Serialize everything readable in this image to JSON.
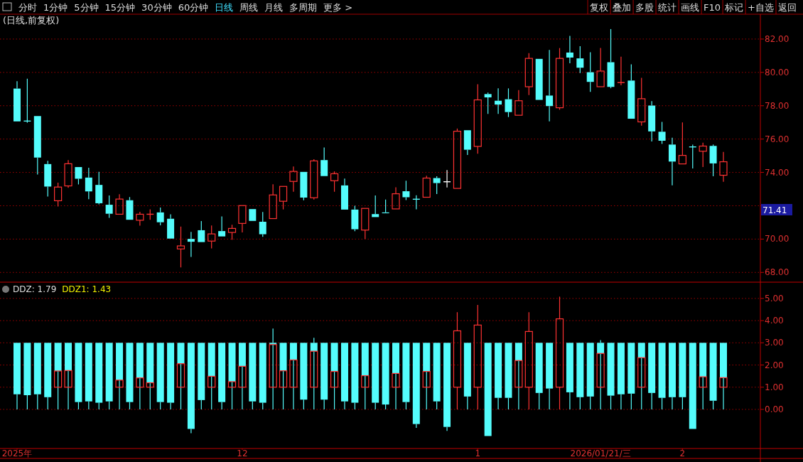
{
  "chart_data": [
    {
      "type": "candlestick",
      "title": "(日线,前复权)",
      "annotations": [
        "分时",
        "1分钟",
        "5分钟",
        "15分钟",
        "30分钟",
        "60分钟",
        "日线",
        "周线",
        "月线",
        "多周期",
        "更多 >",
        "复权",
        "叠加",
        "多股",
        "统计",
        "画线",
        "F10",
        "标记",
        "+自选",
        "返回",
        "71.41"
      ],
      "categories": [
        null,
        null,
        null,
        null,
        null,
        null,
        null,
        null,
        null,
        null,
        null,
        null,
        null,
        null,
        null,
        null,
        null,
        null,
        null,
        null,
        null,
        null,
        null,
        null,
        null,
        null,
        null,
        null,
        null,
        null,
        null,
        null,
        null,
        null,
        null,
        null,
        null,
        null,
        null,
        null,
        null,
        null,
        null,
        null,
        null,
        null,
        null,
        null,
        null,
        null,
        null,
        null,
        null,
        null,
        null,
        null,
        null,
        null,
        null,
        null,
        null,
        null,
        null,
        null,
        null,
        null,
        null,
        null,
        null,
        null
      ],
      "ohlc": [
        [
          79.03,
          79.47,
          77.06,
          77.06
        ],
        [
          77.08,
          79.62,
          76.98,
          77.08
        ],
        [
          77.38,
          77.38,
          73.87,
          74.89
        ],
        [
          74.5,
          74.7,
          72.55,
          73.15
        ],
        [
          72.3,
          73.38,
          71.96,
          73.12
        ],
        [
          73.19,
          74.74,
          73.07,
          74.52
        ],
        [
          74.32,
          74.32,
          73.28,
          73.62
        ],
        [
          73.69,
          74.28,
          72.39,
          72.86
        ],
        [
          73.25,
          74.03,
          72.08,
          72.15
        ],
        [
          72.06,
          72.62,
          71.27,
          71.52
        ],
        [
          71.49,
          72.69,
          71.49,
          72.4
        ],
        [
          72.33,
          72.52,
          71.16,
          71.16
        ],
        [
          71.13,
          71.64,
          70.8,
          71.49
        ],
        [
          71.49,
          71.78,
          71.16,
          71.49
        ],
        [
          71.6,
          71.89,
          70.83,
          71.01
        ],
        [
          71.22,
          71.49,
          70.03,
          70.03
        ],
        [
          69.41,
          70.75,
          68.3,
          69.59
        ],
        [
          70.01,
          70.43,
          68.93,
          69.84
        ],
        [
          70.53,
          71.08,
          69.82,
          69.82
        ],
        [
          69.88,
          70.82,
          69.44,
          70.31
        ],
        [
          70.48,
          71.36,
          70.16,
          70.16
        ],
        [
          70.4,
          70.86,
          69.96,
          70.64
        ],
        [
          70.94,
          72.01,
          70.4,
          72.01
        ],
        [
          71.8,
          71.8,
          71.09,
          71.09
        ],
        [
          71.04,
          71.63,
          70.13,
          70.29
        ],
        [
          71.23,
          73.29,
          71.23,
          72.65
        ],
        [
          72.27,
          73.16,
          71.78,
          73.16
        ],
        [
          73.46,
          74.35,
          72.84,
          74.06
        ],
        [
          74.03,
          74.03,
          72.33,
          72.49
        ],
        [
          72.48,
          74.79,
          72.37,
          74.69
        ],
        [
          74.74,
          75.5,
          73.78,
          73.78
        ],
        [
          73.5,
          74.06,
          72.84,
          73.92
        ],
        [
          73.22,
          73.63,
          71.77,
          71.77
        ],
        [
          71.77,
          72.0,
          70.47,
          70.59
        ],
        [
          70.54,
          71.84,
          70.0,
          71.84
        ],
        [
          71.5,
          72.62,
          71.32,
          71.32
        ],
        [
          71.6,
          72.37,
          71.55,
          71.55
        ],
        [
          71.81,
          73.11,
          71.81,
          72.72
        ],
        [
          72.87,
          73.5,
          72.34,
          72.51
        ],
        [
          72.39,
          72.63,
          71.78,
          72.39
        ],
        [
          72.51,
          73.8,
          72.51,
          73.66
        ],
        [
          73.66,
          73.77,
          72.7,
          73.36
        ],
        [
          73.44,
          74.14,
          73.1,
          73.44
        ],
        [
          73.04,
          76.63,
          73.04,
          76.47
        ],
        [
          76.53,
          76.53,
          75.05,
          75.36
        ],
        [
          75.56,
          79.29,
          75.12,
          78.35
        ],
        [
          78.7,
          78.79,
          77.51,
          78.5
        ],
        [
          78.3,
          79.04,
          77.51,
          78.07
        ],
        [
          78.39,
          79.04,
          77.32,
          77.62
        ],
        [
          77.43,
          78.94,
          77.43,
          78.3
        ],
        [
          79.14,
          81.16,
          78.64,
          80.84
        ],
        [
          80.81,
          80.81,
          78.35,
          78.35
        ],
        [
          78.61,
          81.35,
          77.06,
          77.98
        ],
        [
          77.88,
          81.46,
          77.76,
          80.84
        ],
        [
          81.19,
          82.19,
          80.55,
          80.89
        ],
        [
          80.84,
          81.57,
          79.96,
          80.28
        ],
        [
          80.01,
          81.21,
          78.83,
          79.43
        ],
        [
          79.14,
          81.46,
          79.14,
          80.08
        ],
        [
          80.61,
          82.6,
          79.05,
          79.13
        ],
        [
          79.39,
          80.94,
          79.23,
          79.39
        ],
        [
          79.51,
          80.48,
          77.22,
          77.22
        ],
        [
          77.03,
          79.67,
          76.81,
          78.42
        ],
        [
          78.01,
          78.28,
          75.86,
          76.46
        ],
        [
          76.44,
          77.03,
          75.71,
          75.9
        ],
        [
          75.67,
          76.08,
          73.22,
          74.65
        ],
        [
          74.51,
          77.0,
          74.51,
          75.02
        ],
        [
          75.53,
          75.67,
          74.24,
          75.53
        ],
        [
          75.27,
          75.78,
          74.32,
          75.58
        ],
        [
          75.59,
          75.67,
          73.77,
          74.54
        ],
        [
          73.83,
          75.23,
          73.44,
          74.64
        ]
      ],
      "colors": [
        "#54fcfc",
        "#54fcfc",
        "#54fcfc",
        "#54fcfc",
        "#ff3232",
        "#ff3232",
        "#54fcfc",
        "#54fcfc",
        "#54fcfc",
        "#54fcfc",
        "#ff3232",
        "#54fcfc",
        "#ff3232",
        "#ff3232",
        "#54fcfc",
        "#54fcfc",
        "#ff3232",
        "#54fcfc",
        "#54fcfc",
        "#ff3232",
        "#54fcfc",
        "#ff3232",
        "#ff3232",
        "#54fcfc",
        "#54fcfc",
        "#ff3232",
        "#ff3232",
        "#ff3232",
        "#54fcfc",
        "#ff3232",
        "#54fcfc",
        "#ff3232",
        "#54fcfc",
        "#54fcfc",
        "#ff3232",
        "#54fcfc",
        "#54fcfc",
        "#ff3232",
        "#54fcfc",
        "#54fcfc",
        "#ff3232",
        "#54fcfc",
        "#ffffff",
        "#ff3232",
        "#54fcfc",
        "#ff3232",
        "#54fcfc",
        "#54fcfc",
        "#54fcfc",
        "#ff3232",
        "#ff3232",
        "#54fcfc",
        "#54fcfc",
        "#ff3232",
        "#54fcfc",
        "#54fcfc",
        "#54fcfc",
        "#ff3232",
        "#54fcfc",
        "#ff3232",
        "#54fcfc",
        "#ff3232",
        "#54fcfc",
        "#54fcfc",
        "#54fcfc",
        "#ff3232",
        "#54fcfc",
        "#ff3232",
        "#54fcfc",
        "#ff3232"
      ],
      "ylim": [
        67.5,
        83.49
      ],
      "yticks": [
        {
          "value": 68,
          "label": "68.00"
        },
        {
          "value": 70,
          "label": "70.00"
        },
        {
          "value": 72,
          "label": null
        },
        {
          "value": 74,
          "label": "74.00"
        },
        {
          "value": 76,
          "label": "76.00"
        },
        {
          "value": 78,
          "label": "78.00"
        },
        {
          "value": 80,
          "label": "80.00"
        },
        {
          "value": 82,
          "label": "82.00"
        }
      ],
      "grid": "y",
      "tick_labels": "y"
    },
    {
      "type": "candlestick",
      "annotations": [
        "DDZ: 1.79",
        "DDZ1: 1.43"
      ],
      "categories": [
        "2025年",
        null,
        null,
        null,
        null,
        null,
        null,
        null,
        null,
        null,
        null,
        null,
        null,
        null,
        null,
        null,
        null,
        null,
        null,
        null,
        null,
        null,
        "12",
        null,
        null,
        null,
        null,
        null,
        null,
        null,
        null,
        null,
        null,
        null,
        null,
        null,
        null,
        null,
        null,
        null,
        null,
        null,
        null,
        null,
        null,
        "1",
        null,
        null,
        null,
        null,
        null,
        null,
        null,
        null,
        null,
        null,
        null,
        "2026/01/21/三",
        null,
        null,
        null,
        null,
        null,
        null,
        null,
        "2",
        null,
        null,
        null,
        null
      ],
      "color": "#54fcfc",
      "ohlc": [
        [
          3,
          3,
          0,
          0.68
        ],
        [
          3,
          3,
          0,
          0.64
        ],
        [
          3,
          3,
          0,
          0.68
        ],
        [
          3,
          3,
          0,
          0.55
        ],
        [
          3,
          3,
          0,
          1.73
        ],
        [
          3,
          3,
          0,
          1.75
        ],
        [
          3,
          3,
          0,
          0.33
        ],
        [
          3,
          3,
          0,
          0.36
        ],
        [
          3,
          3,
          0,
          0.3
        ],
        [
          3,
          3,
          0,
          0.36
        ],
        [
          3,
          3,
          0,
          1.32
        ],
        [
          3,
          3,
          0,
          0.33
        ],
        [
          3,
          3,
          0,
          1.42
        ],
        [
          3,
          3,
          0,
          1.2
        ],
        [
          3,
          3,
          0,
          0.33
        ],
        [
          3,
          3,
          0,
          0.3
        ],
        [
          3,
          3,
          0,
          2.06
        ],
        [
          3,
          3,
          -1.07,
          -0.88
        ],
        [
          3,
          3,
          0,
          0.42
        ],
        [
          3,
          3,
          0,
          1.49
        ],
        [
          3,
          3,
          0,
          0.33
        ],
        [
          3,
          3,
          0,
          1.25
        ],
        [
          3,
          3,
          0,
          1.94
        ],
        [
          3,
          3,
          0,
          0.36
        ],
        [
          3,
          3,
          0,
          0.3
        ],
        [
          3,
          3.64,
          0,
          2.92
        ],
        [
          3,
          3,
          0,
          1.74
        ],
        [
          3,
          3,
          0,
          2.23
        ],
        [
          3,
          3,
          0,
          0.44
        ],
        [
          3,
          3.23,
          0,
          2.62
        ],
        [
          3,
          3,
          0,
          0.44
        ],
        [
          3,
          3,
          0,
          1.71
        ],
        [
          3,
          3,
          0,
          0.36
        ],
        [
          3,
          3,
          0,
          0.3
        ],
        [
          3,
          3,
          0,
          1.52
        ],
        [
          3,
          3,
          0,
          0.3
        ],
        [
          3,
          3,
          0,
          0.22
        ],
        [
          3,
          3,
          0,
          1.62
        ],
        [
          3,
          3,
          0,
          0.33
        ],
        [
          3,
          3,
          -0.83,
          -0.66
        ],
        [
          3,
          3,
          0,
          1.71
        ],
        [
          3,
          3,
          0,
          0.36
        ],
        [
          3,
          3,
          -0.97,
          -0.79
        ],
        null,
        [
          3,
          3,
          0,
          0.58
        ],
        null,
        [
          3,
          3,
          -1.2,
          -1.2
        ],
        [
          3,
          3,
          0,
          0.52
        ],
        [
          3,
          3,
          0,
          0.52
        ],
        [
          3,
          3,
          0,
          2.2
        ],
        null,
        [
          3,
          3,
          0,
          0.74
        ],
        [
          3,
          3,
          0,
          0.94
        ],
        null,
        [
          3,
          3,
          0,
          0.77
        ],
        [
          3,
          3,
          0,
          0.55
        ],
        [
          3,
          3,
          0,
          0.58
        ],
        [
          3,
          3.12,
          0,
          2.52
        ],
        [
          3,
          3,
          0,
          0.62
        ],
        [
          3,
          3,
          0,
          0.68
        ],
        [
          3,
          3,
          0,
          0.71
        ],
        [
          3,
          3,
          0,
          2.33
        ],
        [
          3,
          3,
          0,
          0.74
        ],
        [
          3,
          3,
          0,
          0.52
        ],
        [
          3,
          3,
          0,
          0.55
        ],
        [
          3,
          3,
          0,
          0.55
        ],
        [
          3,
          3,
          -0.88,
          -0.88
        ],
        [
          3,
          3,
          0,
          1.47
        ],
        [
          3,
          3,
          0,
          0.39
        ],
        [
          3,
          3,
          0,
          1.43
        ]
      ],
      "ylim": [
        -1.73,
        5.7
      ],
      "yticks": [
        {
          "value": 0,
          "label": "0.00"
        },
        {
          "value": 1,
          "label": "1.00"
        },
        {
          "value": 2,
          "label": "2.00"
        },
        {
          "value": 3,
          "label": "3.00"
        },
        {
          "value": 4,
          "label": "4.00"
        },
        {
          "value": 5,
          "label": "5.00"
        }
      ],
      "grid": "y",
      "series": [
        {
          "type": "candlestick",
          "color": "#ff3232",
          "ohlc": [
            null,
            null,
            null,
            null,
            [
              1,
              1.73,
              1,
              1.73
            ],
            [
              1,
              1.75,
              1,
              1.75
            ],
            null,
            null,
            null,
            null,
            [
              1,
              1.32,
              1,
              1.32
            ],
            null,
            [
              1,
              1.42,
              1,
              1.42
            ],
            [
              1,
              1.2,
              1,
              1.2
            ],
            null,
            null,
            [
              1,
              2.06,
              1,
              2.06
            ],
            null,
            null,
            [
              1,
              1.49,
              1,
              1.49
            ],
            null,
            [
              1,
              1.25,
              1,
              1.25
            ],
            [
              1,
              1.94,
              1,
              1.94
            ],
            null,
            null,
            [
              1,
              2.92,
              1,
              2.92
            ],
            [
              1,
              1.74,
              1,
              1.74
            ],
            [
              1,
              2.23,
              1,
              2.23
            ],
            null,
            [
              1,
              2.62,
              1,
              2.62
            ],
            null,
            [
              1,
              1.71,
              1,
              1.71
            ],
            null,
            null,
            [
              1,
              1.52,
              1,
              1.52
            ],
            null,
            null,
            [
              1,
              1.62,
              1,
              1.62
            ],
            null,
            null,
            [
              1,
              1.71,
              1,
              1.71
            ],
            null,
            null,
            [
              1,
              4.38,
              0,
              3.54
            ],
            null,
            [
              1,
              4.71,
              0,
              3.8
            ],
            null,
            null,
            null,
            [
              1,
              2.2,
              1,
              2.2
            ],
            [
              1,
              4.38,
              0,
              3.51
            ],
            null,
            null,
            [
              1,
              5.08,
              0,
              4.08
            ],
            null,
            null,
            null,
            [
              1,
              2.52,
              1,
              2.52
            ],
            null,
            null,
            null,
            [
              1,
              2.33,
              1,
              2.33
            ],
            null,
            null,
            null,
            null,
            null,
            [
              1,
              1.47,
              1,
              1.47
            ],
            null,
            [
              1,
              1.43,
              1,
              1.43
            ]
          ]
        }
      ]
    }
  ]
}
